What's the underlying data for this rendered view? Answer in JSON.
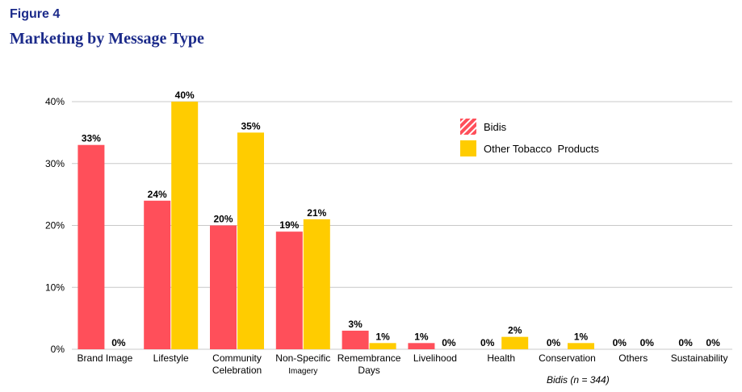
{
  "figure_label": "Figure 4",
  "figure_title": "Marketing by Message Type",
  "colors": {
    "bidis": "#ff4f5a",
    "other": "#ffcc00",
    "grid": "#c8c8c8"
  },
  "chart_data": {
    "type": "bar",
    "title": "Marketing by Message Type",
    "xlabel": "",
    "ylabel": "",
    "ylim": [
      0,
      40
    ],
    "yticks": [
      0,
      10,
      20,
      30,
      40
    ],
    "ytick_labels": [
      "0%",
      "10%",
      "20%",
      "30%",
      "40%"
    ],
    "grid": true,
    "legend_position": "top-right",
    "categories": [
      [
        "Brand Image"
      ],
      [
        "Lifestyle"
      ],
      [
        "Community",
        "Celebration"
      ],
      [
        "Non-Specific",
        "Imagery"
      ],
      [
        "Remembrance",
        "Days"
      ],
      [
        "Livelihood"
      ],
      [
        "Health"
      ],
      [
        "Conservation"
      ],
      [
        "Others"
      ],
      [
        "Sustainability"
      ]
    ],
    "series": [
      {
        "name": "Bidis",
        "values": [
          33,
          24,
          20,
          19,
          3,
          1,
          0,
          0,
          0,
          0
        ]
      },
      {
        "name": "Other Tobacco  Products",
        "values": [
          0,
          40,
          35,
          21,
          1,
          0,
          2,
          1,
          0,
          0
        ]
      }
    ],
    "annotation": "Bidis (n = 344)"
  }
}
